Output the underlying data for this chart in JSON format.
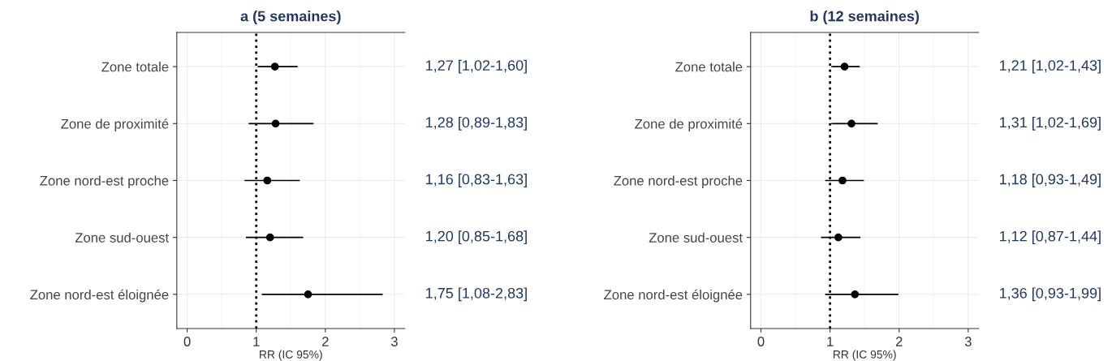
{
  "chart_data": [
    {
      "type": "scatter",
      "orientation": "horizontal",
      "title": "a (5 semaines)",
      "xlabel": "RR (IC 95%)",
      "categories": [
        "Zone totale",
        "Zone de proximité",
        "Zone nord-est proche",
        "Zone sud-ouest",
        "Zone nord-est éloignée"
      ],
      "values": [
        1.27,
        1.28,
        1.16,
        1.2,
        1.75
      ],
      "errors": [
        [
          1.02,
          1.6
        ],
        [
          0.89,
          1.83
        ],
        [
          0.83,
          1.63
        ],
        [
          0.85,
          1.68
        ],
        [
          1.08,
          2.83
        ]
      ],
      "color": "#000000",
      "value_labels": [
        "1,27 [1,02-1,60]",
        "1,28 [0,89-1,83]",
        "1,16 [0,83-1,63]",
        "1,20 [0,85-1,68]",
        "1,75 [1,08-2,83]"
      ],
      "xlim": [
        -0.15,
        3.15
      ],
      "xticks": [
        0,
        1,
        2,
        3
      ],
      "grid": true,
      "marker": "circle",
      "ref_lines": [
        {
          "axis": "x",
          "value": 1,
          "line_style": "dotted",
          "color": "#000000"
        }
      ]
    },
    {
      "type": "scatter",
      "orientation": "horizontal",
      "title": "b (12 semaines)",
      "xlabel": "RR (IC 95%)",
      "categories": [
        "Zone totale",
        "Zone de proximité",
        "Zone nord-est proche",
        "Zone sud-ouest",
        "Zone nord-est éloignée"
      ],
      "values": [
        1.21,
        1.31,
        1.18,
        1.12,
        1.36
      ],
      "errors": [
        [
          1.02,
          1.43
        ],
        [
          1.02,
          1.69
        ],
        [
          0.93,
          1.49
        ],
        [
          0.87,
          1.44
        ],
        [
          0.93,
          1.99
        ]
      ],
      "color": "#000000",
      "value_labels": [
        "1,21 [1,02-1,43]",
        "1,31 [1,02-1,69]",
        "1,18 [0,93-1,49]",
        "1,12 [0,87-1,44]",
        "1,36 [0,93-1,99]"
      ],
      "xlim": [
        -0.15,
        3.15
      ],
      "xticks": [
        0,
        1,
        2,
        3
      ],
      "grid": true,
      "marker": "circle",
      "ref_lines": [
        {
          "axis": "x",
          "value": 1,
          "line_style": "dotted",
          "color": "#000000"
        }
      ]
    }
  ]
}
